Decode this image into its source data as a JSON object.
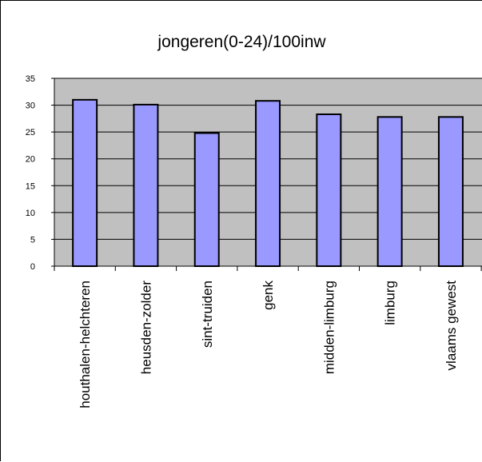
{
  "chart_data": {
    "type": "bar",
    "title": "jongeren(0-24)/100inw",
    "xlabel": "",
    "ylabel": "",
    "categories": [
      "houthalen-helchteren",
      "heusden-zolder",
      "sint-truiden",
      "genk",
      "midden-limburg",
      "limburg",
      "vlaams gewest"
    ],
    "values": [
      31,
      30.1,
      24.8,
      30.8,
      28.3,
      27.8,
      27.8
    ],
    "ylim": [
      0,
      35
    ],
    "yticks": [
      "0",
      "5",
      "10",
      "15",
      "20",
      "25",
      "30",
      "35"
    ],
    "grid": true,
    "legend": "none",
    "colors": {
      "bar": "#9999ff",
      "plot_background": "#c0c0c0",
      "bar_outline": "#000000"
    }
  }
}
